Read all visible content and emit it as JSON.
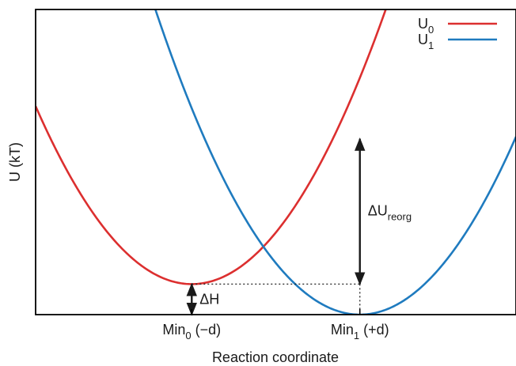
{
  "chart_data": {
    "type": "line",
    "xlabel": "Reaction coordinate",
    "ylabel": "U (kT)",
    "xlim": [
      -2,
      2
    ],
    "ylim": [
      0,
      10
    ],
    "grid": false,
    "legend_position": "top-right",
    "x_ticks": [
      {
        "x": -0.7,
        "base": "Min",
        "sub": "0",
        "suffix": " (−d)"
      },
      {
        "x": 0.7,
        "base": "Min",
        "sub": "1",
        "suffix": " (+d)"
      }
    ],
    "series": [
      {
        "name": "U0",
        "name_base": "U",
        "name_sub": "0",
        "color": "#dc2f2f",
        "curve": {
          "center": -0.7,
          "min": 1.0,
          "k": 3.45
        }
      },
      {
        "name": "U1",
        "name_base": "U",
        "name_sub": "1",
        "color": "#1f7bbf",
        "curve": {
          "center": 0.7,
          "min": 0.0,
          "k": 3.45
        }
      }
    ],
    "annotations": [
      {
        "name": "ΔU_reorg",
        "base": "ΔU",
        "sub": "reorg",
        "x": 0.7,
        "y_from": 1.0,
        "y_to": 5.76
      },
      {
        "name": "ΔH",
        "base": "ΔH",
        "sub": "",
        "x": -0.7,
        "y_from": 0.0,
        "y_to": 1.0
      }
    ]
  }
}
